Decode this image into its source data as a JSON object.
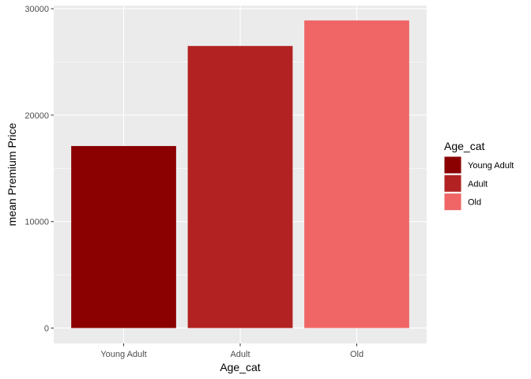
{
  "chart_data": {
    "type": "bar",
    "title": "",
    "xlabel": "Age_cat",
    "ylabel": "mean Premium Price",
    "categories": [
      "Young Adult",
      "Adult",
      "Old"
    ],
    "values": [
      17100,
      26500,
      28900
    ],
    "colors": [
      "#8B0000",
      "#B22222",
      "#F06666"
    ],
    "ylim": [
      -1450,
      30300
    ],
    "yticks": [
      0,
      10000,
      20000,
      30000
    ],
    "ytick_labels": [
      "0",
      "10000",
      "20000",
      "30000"
    ],
    "grid": true,
    "legend": {
      "title": "Age_cat",
      "position": "right",
      "entries": [
        "Young Adult",
        "Adult",
        "Old"
      ]
    },
    "panel_background": "#EBEBEB",
    "grid_color": "#FFFFFF"
  }
}
